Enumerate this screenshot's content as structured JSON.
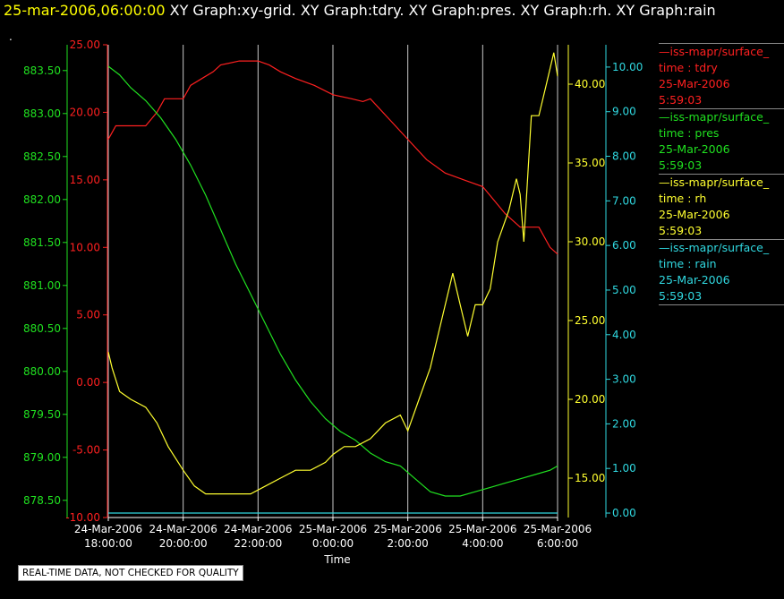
{
  "header": {
    "timestamp": "25-mar-2006,06:00:00",
    "graphs": "XY Graph:xy-grid.  XY Graph:tdry.  XY Graph:pres.  XY Graph:rh.  XY Graph:rain",
    "dot": "."
  },
  "footer": "REAL-TIME DATA, NOT CHECKED FOR QUALITY",
  "colors": {
    "tdry": "#ff2020",
    "pres": "#20e020",
    "rh": "#ffff30",
    "rain": "#30d8e0",
    "grid": "#c8c8c8"
  },
  "legend": [
    {
      "name": "—iss-mapr/surface_",
      "label": "time : tdry",
      "date": "25-Mar-2006",
      "time": "5:59:03",
      "color": "#ff2020"
    },
    {
      "name": "—iss-mapr/surface_",
      "label": "time : pres",
      "date": "25-Mar-2006",
      "time": "5:59:03",
      "color": "#20e020"
    },
    {
      "name": "—iss-mapr/surface_",
      "label": "time : rh",
      "date": "25-Mar-2006",
      "time": "5:59:03",
      "color": "#ffff30"
    },
    {
      "name": "—iss-mapr/surface_",
      "label": "time : rain",
      "date": "25-Mar-2006",
      "time": "5:59:03",
      "color": "#30d8e0"
    }
  ],
  "chart_data": {
    "type": "line",
    "xlabel": "Time",
    "x_ticks": [
      {
        "date": "24-Mar-2006",
        "time": "18:00:00"
      },
      {
        "date": "24-Mar-2006",
        "time": "20:00:00"
      },
      {
        "date": "24-Mar-2006",
        "time": "22:00:00"
      },
      {
        "date": "25-Mar-2006",
        "time": "0:00:00"
      },
      {
        "date": "25-Mar-2006",
        "time": "2:00:00"
      },
      {
        "date": "25-Mar-2006",
        "time": "4:00:00"
      },
      {
        "date": "25-Mar-2006",
        "time": "6:00:00"
      }
    ],
    "xlim_hours": [
      0,
      12
    ],
    "axes": {
      "tdry": {
        "ticks": [
          "25.00",
          "20.00",
          "15.00",
          "10.00",
          "5.00",
          "0.00",
          "-5.00",
          "-10.00"
        ],
        "ylim": [
          -10,
          25
        ]
      },
      "pres": {
        "ticks": [
          "883.50",
          "883.00",
          "882.50",
          "882.00",
          "881.50",
          "881.00",
          "880.50",
          "880.00",
          "879.50",
          "879.00",
          "878.50"
        ],
        "ylim": [
          878.3,
          883.8
        ]
      },
      "rh": {
        "ticks": [
          "40.00",
          "35.00",
          "30.00",
          "25.00",
          "20.00",
          "15.00"
        ],
        "ylim": [
          12.5,
          42.5
        ]
      },
      "rain": {
        "ticks": [
          "10.00",
          "9.00",
          "8.00",
          "7.00",
          "6.00",
          "5.00",
          "4.00",
          "3.00",
          "2.00",
          "1.00",
          "0.00"
        ],
        "ylim": [
          -0.1,
          10.5
        ]
      }
    },
    "series": [
      {
        "name": "tdry",
        "x": [
          0,
          0.1,
          0.2,
          0.5,
          0.8,
          1,
          1.3,
          1.5,
          1.7,
          2,
          2.2,
          2.5,
          2.8,
          3,
          3.5,
          4,
          4.3,
          4.6,
          5,
          5.5,
          6,
          6.5,
          6.8,
          7,
          7.5,
          8,
          8.5,
          9,
          9.5,
          10,
          10.3,
          10.6,
          11,
          11.5,
          11.8,
          12
        ],
        "values": [
          18,
          18.5,
          19,
          19,
          19,
          19,
          20,
          21,
          21,
          21,
          22,
          22.5,
          23,
          23.5,
          23.8,
          23.8,
          23.5,
          23,
          22.5,
          22,
          21.3,
          21,
          20.8,
          21,
          19.5,
          18,
          16.5,
          15.5,
          15,
          14.5,
          13.5,
          12.5,
          11.5,
          11.5,
          10,
          9.5
        ]
      },
      {
        "name": "pres",
        "x": [
          0,
          0.3,
          0.6,
          1,
          1.4,
          1.8,
          2.2,
          2.6,
          3,
          3.4,
          3.8,
          4.2,
          4.6,
          5,
          5.4,
          5.8,
          6.2,
          6.6,
          7,
          7.4,
          7.8,
          8.2,
          8.6,
          9,
          9.4,
          9.8,
          10.2,
          10.6,
          11,
          11.4,
          11.8,
          12
        ],
        "values": [
          883.55,
          883.45,
          883.3,
          883.15,
          882.95,
          882.7,
          882.4,
          882.05,
          881.65,
          881.25,
          880.9,
          880.55,
          880.2,
          879.9,
          879.65,
          879.45,
          879.3,
          879.2,
          879.05,
          878.95,
          878.9,
          878.75,
          878.6,
          878.55,
          878.55,
          878.6,
          878.65,
          878.7,
          878.75,
          878.8,
          878.85,
          878.9
        ]
      },
      {
        "name": "rh",
        "x": [
          0,
          0.1,
          0.3,
          0.6,
          1,
          1.3,
          1.6,
          2,
          2.3,
          2.6,
          3,
          3.4,
          3.8,
          4.2,
          4.6,
          5,
          5.4,
          5.8,
          6,
          6.3,
          6.6,
          7,
          7.4,
          7.8,
          8,
          8.3,
          8.6,
          8.8,
          9,
          9.2,
          9.4,
          9.6,
          9.8,
          10,
          10.2,
          10.4,
          10.7,
          10.9,
          11,
          11.1,
          11.3,
          11.5,
          11.7,
          11.9,
          12
        ],
        "values": [
          23,
          22,
          20.5,
          20,
          19.5,
          18.5,
          17,
          15.5,
          14.5,
          14,
          14,
          14,
          14,
          14.5,
          15,
          15.5,
          15.5,
          16,
          16.5,
          17,
          17,
          17.5,
          18.5,
          19,
          18,
          20,
          22,
          24,
          26,
          28,
          26,
          24,
          26,
          26,
          27,
          30,
          32,
          34,
          33,
          30,
          38,
          38,
          40,
          42,
          40.5
        ]
      },
      {
        "name": "rain",
        "x": [
          0,
          12
        ],
        "values": [
          0,
          0
        ]
      }
    ]
  }
}
